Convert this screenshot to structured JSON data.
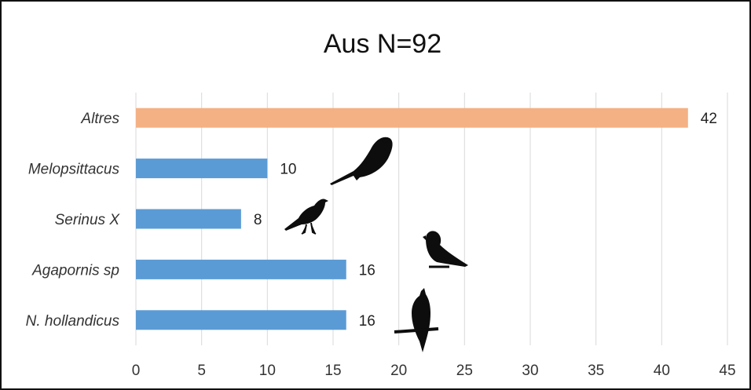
{
  "chart_data": {
    "type": "bar",
    "orientation": "horizontal",
    "title": "Aus N=92",
    "categories": [
      "Altres",
      "Melopsittacus",
      "Serinus X",
      "Agapornis sp",
      "N. hollandicus"
    ],
    "values": [
      42,
      10,
      8,
      16,
      16
    ],
    "xlim": [
      0,
      45
    ],
    "x_ticks": [
      0,
      5,
      10,
      15,
      20,
      25,
      30,
      35,
      40,
      45
    ],
    "grid": "vertical",
    "legend": "none",
    "data_labels": true,
    "colors": [
      "#f4b183",
      "#5b9bd5",
      "#5b9bd5",
      "#5b9bd5",
      "#5b9bd5"
    ]
  },
  "decorations": {
    "icons": [
      "budgerigar-silhouette-icon",
      "canary-silhouette-icon",
      "lovebird-silhouette-icon",
      "cockatiel-silhouette-icon"
    ]
  }
}
